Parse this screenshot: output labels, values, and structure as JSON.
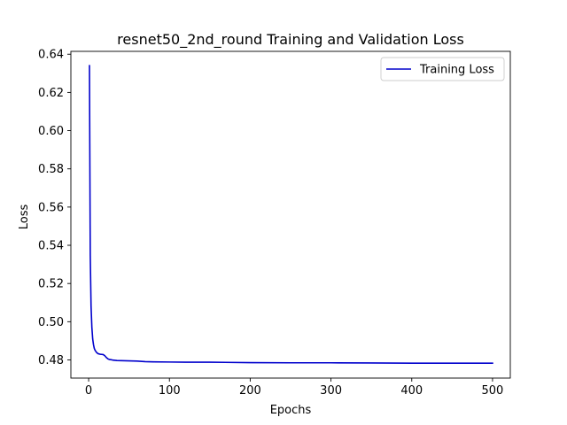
{
  "chart_data": {
    "type": "line",
    "title": "resnet50_2nd_round Training and Validation Loss",
    "xlabel": "Epochs",
    "ylabel": "Loss",
    "xlim": [
      -22,
      522
    ],
    "ylim": [
      0.4705,
      0.6415
    ],
    "xticks": [
      0,
      100,
      200,
      300,
      400,
      500
    ],
    "yticks": [
      0.48,
      0.5,
      0.52,
      0.54,
      0.56,
      0.58,
      0.6,
      0.62,
      0.64
    ],
    "grid": false,
    "legend_position": "top-right",
    "series": [
      {
        "name": "Training Loss",
        "color": "#0000cc",
        "x": [
          1,
          2,
          3,
          4,
          5,
          6,
          7,
          8,
          10,
          12,
          14,
          16,
          18,
          20,
          22,
          24,
          26,
          28,
          30,
          35,
          40,
          50,
          60,
          70,
          80,
          100,
          120,
          150,
          200,
          250,
          300,
          350,
          400,
          450,
          500
        ],
        "y": [
          0.634,
          0.535,
          0.508,
          0.497,
          0.491,
          0.488,
          0.486,
          0.485,
          0.4838,
          0.4832,
          0.483,
          0.4829,
          0.4828,
          0.4822,
          0.4812,
          0.4805,
          0.4802,
          0.4801,
          0.4799,
          0.4797,
          0.4796,
          0.4795,
          0.4794,
          0.4791,
          0.479,
          0.4789,
          0.4788,
          0.4788,
          0.4786,
          0.4785,
          0.4785,
          0.4784,
          0.4783,
          0.4783,
          0.4783
        ]
      }
    ]
  }
}
